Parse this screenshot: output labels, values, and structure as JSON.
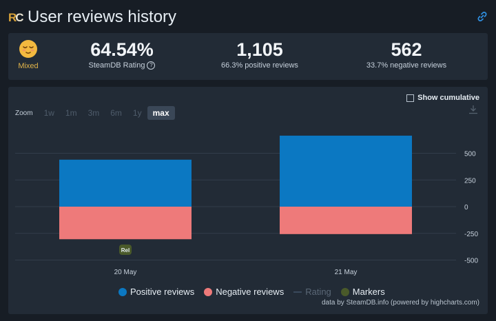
{
  "header": {
    "logo_text": "RC",
    "title": "User reviews history"
  },
  "summary": {
    "mood_label": "Mixed",
    "rating": {
      "value": "64.54%",
      "label": "SteamDB Rating"
    },
    "positive": {
      "value": "1,105",
      "label": "66.3% positive reviews"
    },
    "negative": {
      "value": "562",
      "label": "33.7% negative reviews"
    }
  },
  "controls": {
    "show_cumulative": "Show cumulative",
    "zoom_label": "Zoom",
    "zoom_options": [
      "1w",
      "1m",
      "3m",
      "6m",
      "1y",
      "max"
    ],
    "zoom_selected": "max"
  },
  "colors": {
    "positive": "#0b78c2",
    "negative": "#ee7a7a",
    "rating": "#3a4a5c",
    "markers": "#4a5a2a"
  },
  "chart_data": {
    "type": "bar",
    "categories": [
      "20 May",
      "21 May"
    ],
    "series": [
      {
        "name": "Positive reviews",
        "values": [
          440,
          665
        ]
      },
      {
        "name": "Negative reviews",
        "values": [
          -305,
          -257
        ]
      }
    ],
    "y_ticks": [
      "500",
      "250",
      "0",
      "-250",
      "-500"
    ],
    "y_tick_values": [
      500,
      250,
      0,
      -250,
      -500
    ],
    "ylim": [
      -500,
      665
    ],
    "marker": {
      "label": "Rel",
      "category": "20 May"
    },
    "legend": [
      "Positive reviews",
      "Negative reviews",
      "Rating",
      "Markers"
    ],
    "legend_placement": "bottom",
    "grid": true
  },
  "credit": "data by SteamDB.info (powered by highcharts.com)"
}
